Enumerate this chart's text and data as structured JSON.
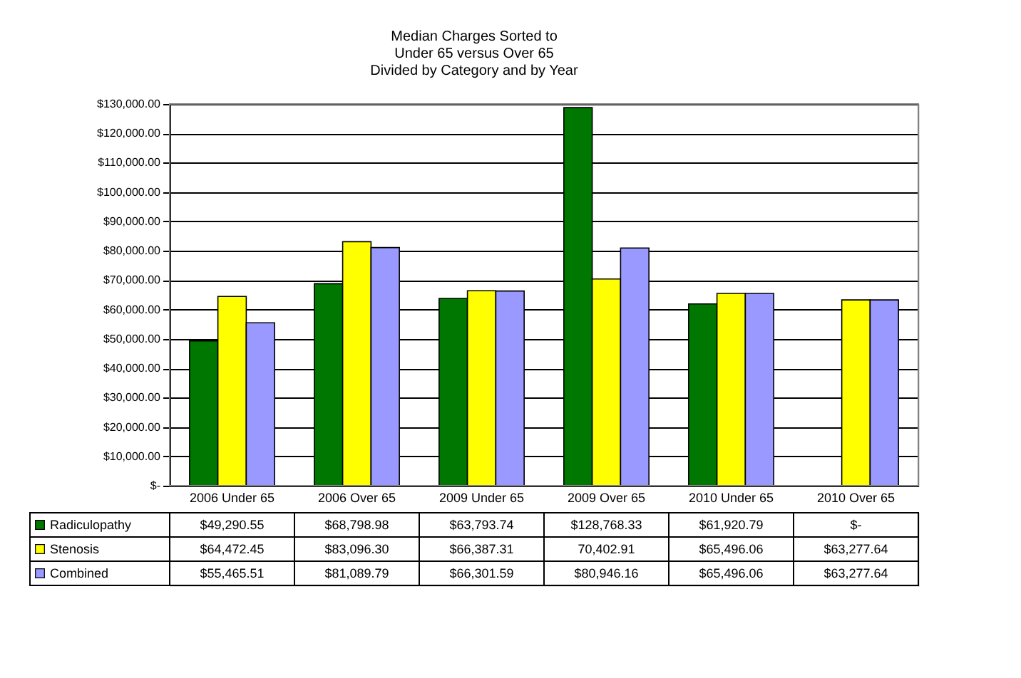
{
  "chart_data": {
    "type": "bar",
    "title": "Median Charges Sorted to\nUnder 65 versus Over 65\nDivided by Category and by Year",
    "categories": [
      "2006 Under 65",
      "2006 Over 65",
      "2009 Under 65",
      "2009 Over 65",
      "2010 Under 65",
      "2010 Over 65"
    ],
    "series": [
      {
        "name": "Radiculopathy",
        "color": "#007700",
        "values": [
          49290.55,
          68798.98,
          63793.74,
          128768.33,
          61920.79,
          null
        ],
        "value_labels": [
          "$49,290.55",
          "$68,798.98",
          "$63,793.74",
          "$128,768.33",
          "$61,920.79",
          "$-"
        ]
      },
      {
        "name": "Stenosis",
        "color": "#ffff00",
        "values": [
          64472.45,
          83096.3,
          66387.31,
          70402.91,
          65496.06,
          63277.64
        ],
        "value_labels": [
          "$64,472.45",
          "$83,096.30",
          "$66,387.31",
          "70,402.91",
          "$65,496.06",
          "$63,277.64"
        ]
      },
      {
        "name": "Combined",
        "color": "#9999ff",
        "values": [
          55465.51,
          81089.79,
          66301.59,
          80946.16,
          65496.06,
          63277.64
        ],
        "value_labels": [
          "$55,465.51",
          "$81,089.79",
          "$66,301.59",
          "$80,946.16",
          "$65,496.06",
          "$63,277.64"
        ]
      }
    ],
    "ylim": [
      0,
      130000
    ],
    "yticks": [
      {
        "value": 0,
        "label": "$-"
      },
      {
        "value": 10000,
        "label": "$10,000.00"
      },
      {
        "value": 20000,
        "label": "$20,000.00"
      },
      {
        "value": 30000,
        "label": "$30,000.00"
      },
      {
        "value": 40000,
        "label": "$40,000.00"
      },
      {
        "value": 50000,
        "label": "$50,000.00"
      },
      {
        "value": 60000,
        "label": "$60,000.00"
      },
      {
        "value": 70000,
        "label": "$70,000.00"
      },
      {
        "value": 80000,
        "label": "$80,000.00"
      },
      {
        "value": 90000,
        "label": "$90,000.00"
      },
      {
        "value": 100000,
        "label": "$100,000.00"
      },
      {
        "value": 110000,
        "label": "$110,000.00"
      },
      {
        "value": 120000,
        "label": "$120,000.00"
      },
      {
        "value": 130000,
        "label": "$130,000.00"
      }
    ],
    "grid": "y",
    "legend": "bottom left"
  }
}
